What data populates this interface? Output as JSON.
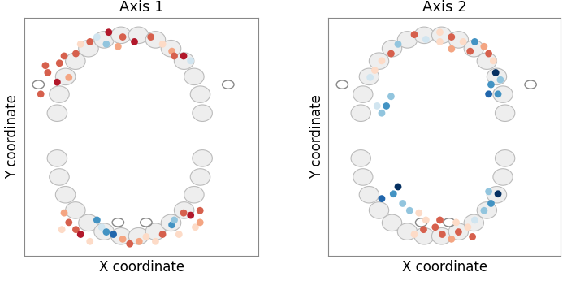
{
  "chart_data": [
    {
      "type": "scatter",
      "title": "Axis 1",
      "x_label": "X coordinate",
      "y_label": "Y coordinate",
      "xlim": [
        0,
        1
      ],
      "ylim": [
        0,
        1
      ],
      "xticks": [],
      "yticks": [],
      "tick_labels": false,
      "x": [
        0.36,
        0.42,
        0.47,
        0.28,
        0.24,
        0.22,
        0.17,
        0.15,
        0.1,
        0.14,
        0.19,
        0.09,
        0.07,
        0.35,
        0.4,
        0.31,
        0.54,
        0.59,
        0.63,
        0.64,
        0.68,
        0.71,
        0.17,
        0.19,
        0.22,
        0.24,
        0.28,
        0.16,
        0.31,
        0.33,
        0.35,
        0.38,
        0.42,
        0.45,
        0.49,
        0.52,
        0.56,
        0.59,
        0.63,
        0.64,
        0.68,
        0.71,
        0.75,
        0.73,
        0.66,
        0.75
      ],
      "values": [
        0.94,
        0.92,
        0.9,
        0.9,
        0.89,
        0.85,
        0.84,
        0.81,
        0.77,
        0.73,
        0.75,
        0.8,
        0.68,
        0.89,
        0.88,
        0.92,
        0.92,
        0.89,
        0.86,
        0.84,
        0.84,
        0.82,
        0.18,
        0.14,
        0.11,
        0.09,
        0.06,
        0.11,
        0.15,
        0.12,
        0.1,
        0.09,
        0.07,
        0.05,
        0.06,
        0.08,
        0.06,
        0.09,
        0.13,
        0.15,
        0.18,
        0.17,
        0.19,
        0.12,
        0.09,
        0.14
      ],
      "colors": [
        "#b2182b",
        "#d6604d",
        "#b2182b",
        "#d6604d",
        "#fddbc7",
        "#d6604d",
        "#d6604d",
        "#d6604d",
        "#d6604d",
        "#b2182b",
        "#f4a582",
        "#d6604d",
        "#d6604d",
        "#92c5de",
        "#f4a582",
        "#d1e5f0",
        "#d6604d",
        "#fddbc7",
        "#f4a582",
        "#d6604d",
        "#b2182b",
        "#d1e5f0",
        "#f4a582",
        "#d6604d",
        "#d6604d",
        "#b2182b",
        "#fddbc7",
        "#fddbc7",
        "#4393c3",
        "#d1e5f0",
        "#4393c3",
        "#2166ac",
        "#f4a582",
        "#d6604d",
        "#f4a582",
        "#fddbc7",
        "#fddbc7",
        "#d6604d",
        "#4393c3",
        "#92c5de",
        "#d6604d",
        "#b2182b",
        "#d6604d",
        "#fddbc7",
        "#fddbc7",
        "#f4a582"
      ]
    },
    {
      "type": "scatter",
      "title": "Axis 2",
      "x_label": "X coordinate",
      "y_label": "Y coordinate",
      "xlim": [
        0,
        1
      ],
      "ylim": [
        0,
        1
      ],
      "xticks": [],
      "yticks": [],
      "tick_labels": false,
      "x": [
        0.37,
        0.42,
        0.48,
        0.53,
        0.58,
        0.3,
        0.27,
        0.23,
        0.2,
        0.18,
        0.63,
        0.67,
        0.69,
        0.71,
        0.72,
        0.74,
        0.7,
        0.73,
        0.69,
        0.61,
        0.53,
        0.48,
        0.27,
        0.25,
        0.23,
        0.21,
        0.3,
        0.28,
        0.23,
        0.32,
        0.35,
        0.39,
        0.42,
        0.46,
        0.49,
        0.53,
        0.56,
        0.6,
        0.63,
        0.67,
        0.7,
        0.73,
        0.69,
        0.48,
        0.41,
        0.55,
        0.37,
        0.62
      ],
      "values": [
        0.93,
        0.91,
        0.94,
        0.92,
        0.9,
        0.89,
        0.85,
        0.82,
        0.78,
        0.75,
        0.9,
        0.88,
        0.85,
        0.82,
        0.77,
        0.74,
        0.72,
        0.68,
        0.68,
        0.86,
        0.87,
        0.9,
        0.67,
        0.63,
        0.6,
        0.63,
        0.29,
        0.26,
        0.24,
        0.22,
        0.19,
        0.18,
        0.15,
        0.12,
        0.09,
        0.07,
        0.1,
        0.12,
        0.15,
        0.19,
        0.22,
        0.26,
        0.27,
        0.15,
        0.11,
        0.14,
        0.09,
        0.08
      ],
      "colors": [
        "#d6604d",
        "#d1e5f0",
        "#fddbc7",
        "#d6604d",
        "#fddbc7",
        "#92c5de",
        "#d6604d",
        "#fddbc7",
        "#fddbc7",
        "#d1e5f0",
        "#4393c3",
        "#f4a582",
        "#d6604d",
        "#fddbc7",
        "#053061",
        "#92c5de",
        "#4393c3",
        "#4393c3",
        "#2166ac",
        "#d6604d",
        "#f4a582",
        "#fddbc7",
        "#92c5de",
        "#4393c3",
        "#92c5de",
        "#d1e5f0",
        "#053061",
        "#4393c3",
        "#2166ac",
        "#92c5de",
        "#92c5de",
        "#fddbc7",
        "#fddbc7",
        "#d6604d",
        "#d6604d",
        "#f4a582",
        "#d6604d",
        "#fddbc7",
        "#d1e5f0",
        "#92c5de",
        "#4393c3",
        "#053061",
        "#92c5de",
        "#d6604d",
        "#d6604d",
        "#fddbc7",
        "#fddbc7",
        "#d6604d"
      ]
    }
  ]
}
